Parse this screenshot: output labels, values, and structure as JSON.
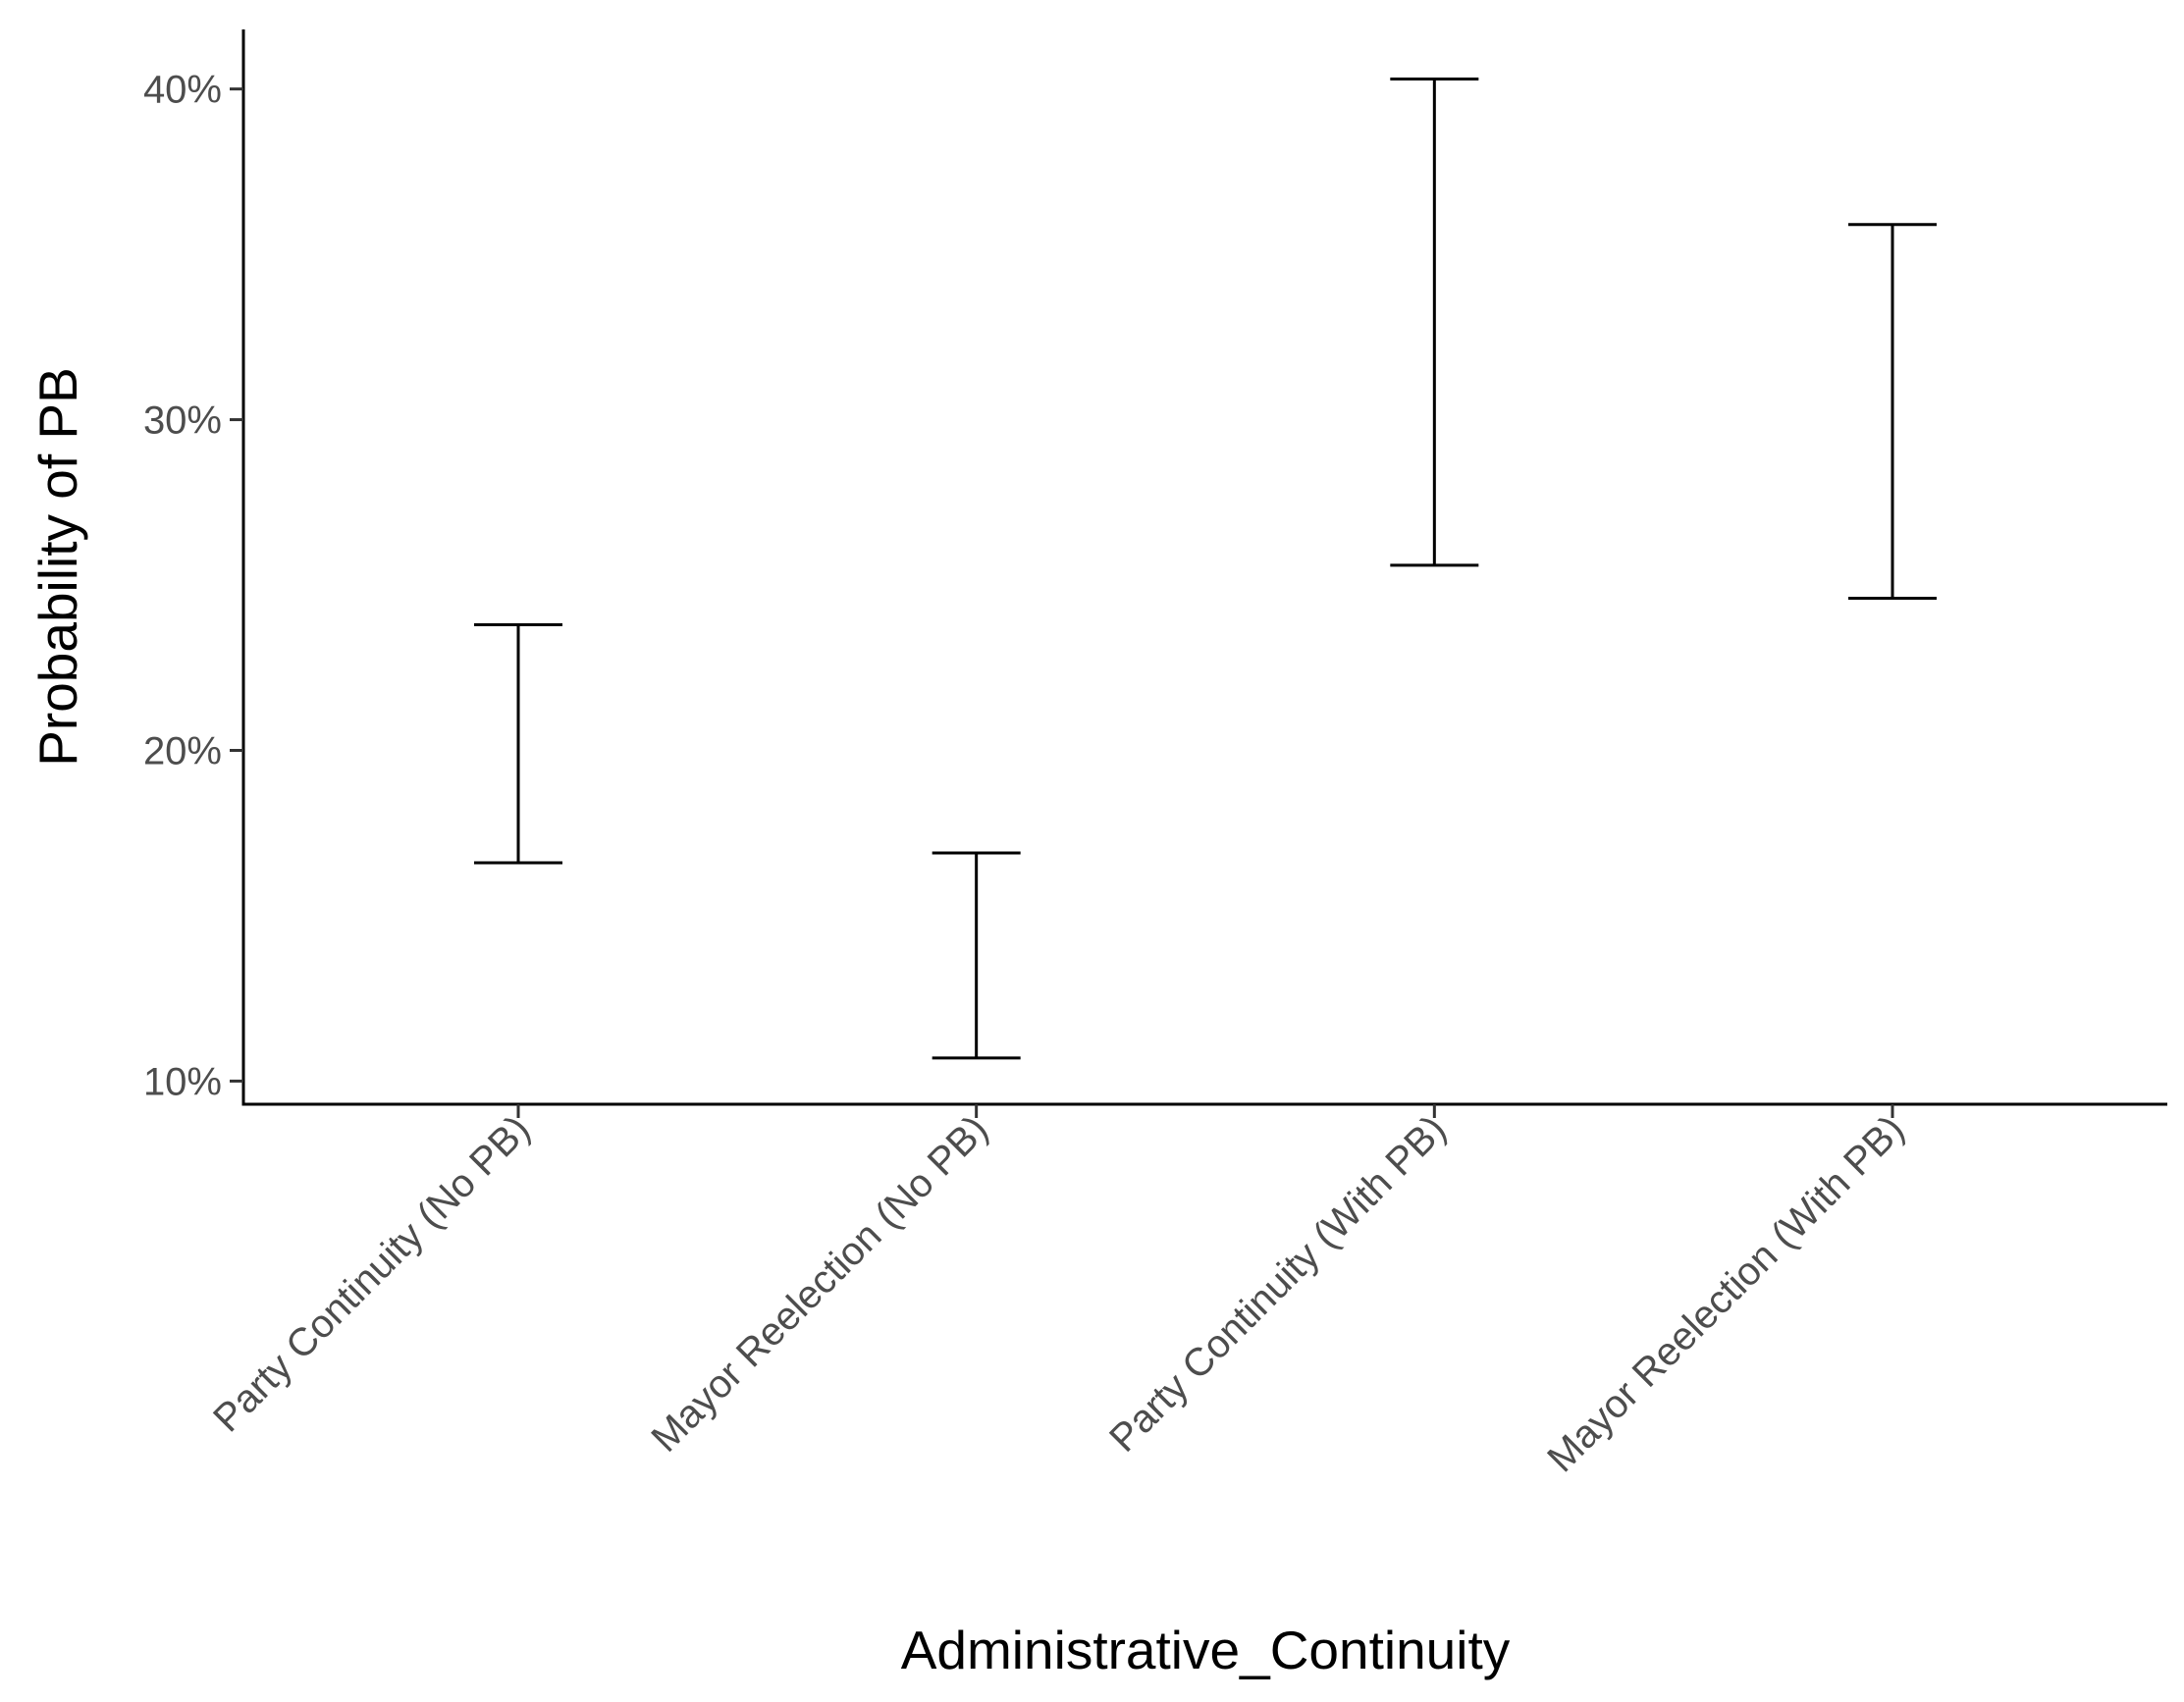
{
  "chart_data": {
    "type": "errorbar",
    "xlabel": "Administrative_Continuity",
    "ylabel": "Probability of PB",
    "categories": [
      "Party Continuity (No PB)",
      "Mayor Reelection (No PB)",
      "Party Continuity (With PB)",
      "Mayor Reelection (With PB)"
    ],
    "lower": [
      0.166,
      0.107,
      0.256,
      0.246
    ],
    "upper": [
      0.238,
      0.169,
      0.403,
      0.359
    ],
    "ylim": [
      0.093,
      0.418
    ],
    "y_ticks": [
      0.1,
      0.2,
      0.3,
      0.4
    ],
    "y_tick_labels": [
      "10%",
      "20%",
      "30%",
      "40%"
    ],
    "grid": false,
    "legend": "none",
    "colors": {
      "errorbar": "#000000",
      "axis": "#000000",
      "tick_label": "#4d4d4d"
    }
  }
}
